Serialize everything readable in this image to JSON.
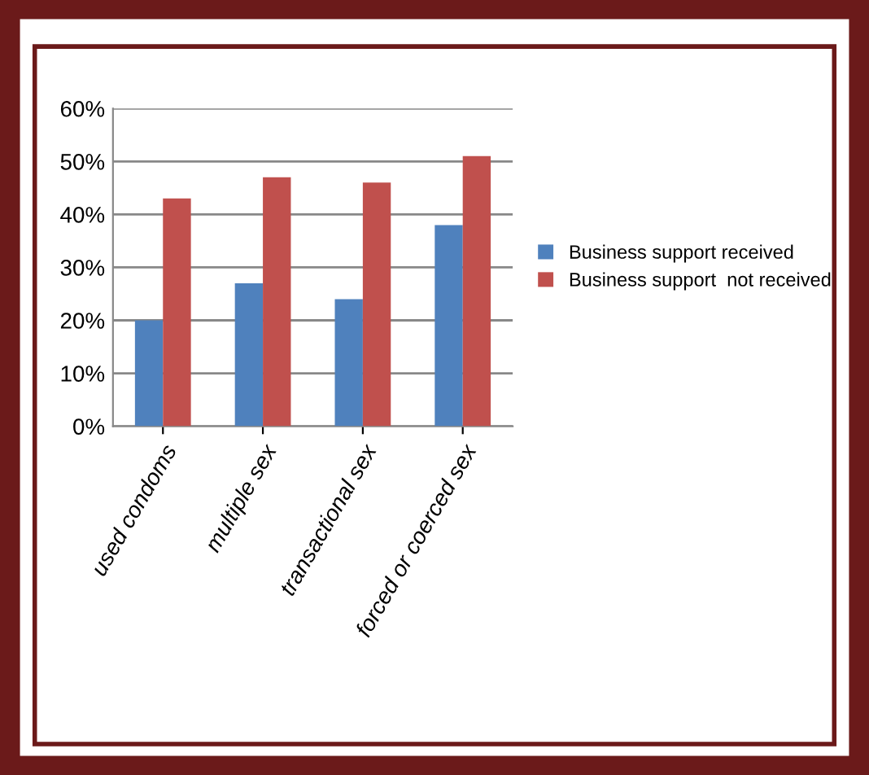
{
  "chart_data": {
    "type": "bar",
    "categories": [
      "used condoms",
      "multiple sex",
      "transactional sex",
      "forced or coerced sex"
    ],
    "series": [
      {
        "name": "Business support received",
        "color": "#4f81bd",
        "values": [
          20,
          27,
          24,
          38
        ]
      },
      {
        "name": "Business support  not received",
        "color": "#c0504d",
        "values": [
          43,
          47,
          46,
          51
        ]
      }
    ],
    "ylim": [
      0,
      60
    ],
    "yticks": [
      {
        "value": 0,
        "label": "0%"
      },
      {
        "value": 10,
        "label": "10%"
      },
      {
        "value": 20,
        "label": "20%"
      },
      {
        "value": 30,
        "label": "30%"
      },
      {
        "value": 40,
        "label": "40%"
      },
      {
        "value": 50,
        "label": "50%"
      },
      {
        "value": 60,
        "label": "60%"
      }
    ],
    "grid": "y",
    "legend": "right"
  }
}
